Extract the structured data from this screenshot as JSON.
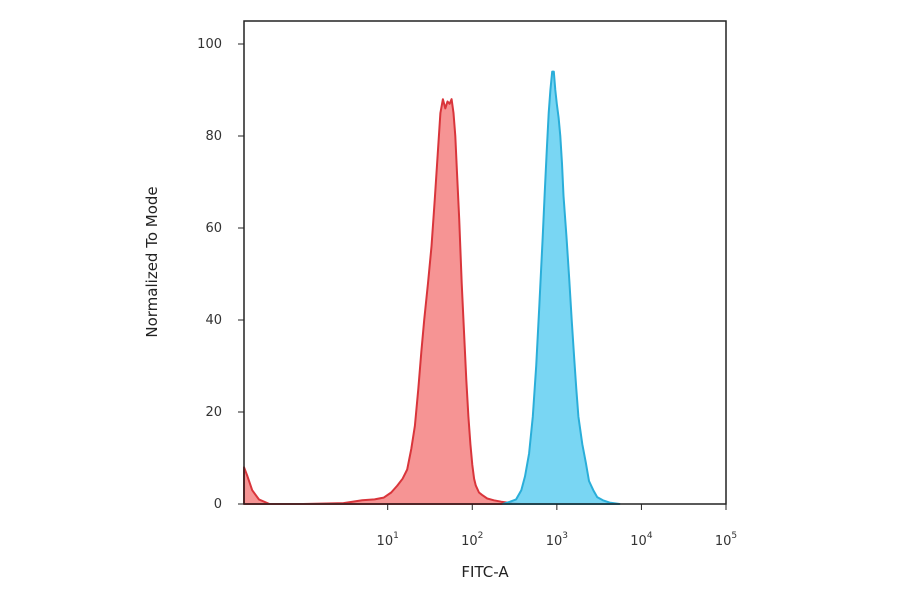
{
  "chart_data": {
    "type": "area",
    "title": "",
    "xlabel": "FITC-A",
    "ylabel": "Normalized To Mode",
    "x_scale": "log",
    "xlim": [
      0.2,
      100000
    ],
    "ylim": [
      0,
      105
    ],
    "grid": false,
    "legend": "none",
    "x_ticks": [
      {
        "value": 10,
        "base": "10",
        "exp": "1"
      },
      {
        "value": 100,
        "base": "10",
        "exp": "2"
      },
      {
        "value": 1000,
        "base": "10",
        "exp": "3"
      },
      {
        "value": 10000,
        "base": "10",
        "exp": "4"
      },
      {
        "value": 100000,
        "base": "10",
        "exp": "5"
      }
    ],
    "y_ticks": [
      {
        "value": 0,
        "label": "0"
      },
      {
        "value": 20,
        "label": "20"
      },
      {
        "value": 40,
        "label": "40"
      },
      {
        "value": 60,
        "label": "60"
      },
      {
        "value": 80,
        "label": "80"
      },
      {
        "value": 100,
        "label": "100"
      }
    ],
    "series": [
      {
        "fill": "#f47c7c",
        "stroke": "#d9353b",
        "x": [
          0.2,
          0.22,
          0.25,
          0.3,
          0.4,
          1,
          3,
          5,
          7,
          9,
          11,
          13,
          15,
          17,
          19,
          21,
          23,
          25,
          27,
          30,
          33,
          36,
          39,
          42,
          45,
          48,
          51,
          54,
          57,
          60,
          63,
          66,
          70,
          75,
          80,
          85,
          90,
          95,
          100,
          105,
          110,
          120,
          130,
          150,
          180,
          220,
          260,
          300,
          380
        ],
        "y": [
          8,
          6,
          3,
          1,
          0,
          0,
          0.2,
          0.8,
          1,
          1.4,
          2.5,
          4,
          5.5,
          7.5,
          12,
          17,
          25,
          33,
          40,
          48,
          56,
          66,
          76,
          85,
          88,
          86,
          87.5,
          87,
          88,
          85,
          80,
          72,
          62,
          48,
          37,
          27,
          19,
          13,
          8.5,
          5.5,
          4,
          2.5,
          2,
          1.2,
          0.8,
          0.5,
          0.3,
          0.1,
          0
        ]
      },
      {
        "fill": "#5bcdf0",
        "stroke": "#2aaed9",
        "x": [
          230,
          280,
          330,
          380,
          420,
          470,
          520,
          570,
          620,
          680,
          720,
          760,
          800,
          840,
          880,
          920,
          960,
          1000,
          1050,
          1100,
          1150,
          1200,
          1300,
          1400,
          1500,
          1600,
          1700,
          1800,
          2000,
          2200,
          2400,
          2700,
          3000,
          3500,
          4200,
          5500
        ],
        "y": [
          0,
          0.5,
          1,
          3,
          6,
          11,
          19,
          30,
          43,
          58,
          68,
          77,
          85,
          90,
          94,
          94,
          90,
          87,
          84,
          80,
          74,
          67,
          58,
          49,
          40,
          32,
          25,
          19,
          13,
          9,
          5,
          3,
          1.5,
          0.8,
          0.3,
          0
        ]
      }
    ]
  }
}
